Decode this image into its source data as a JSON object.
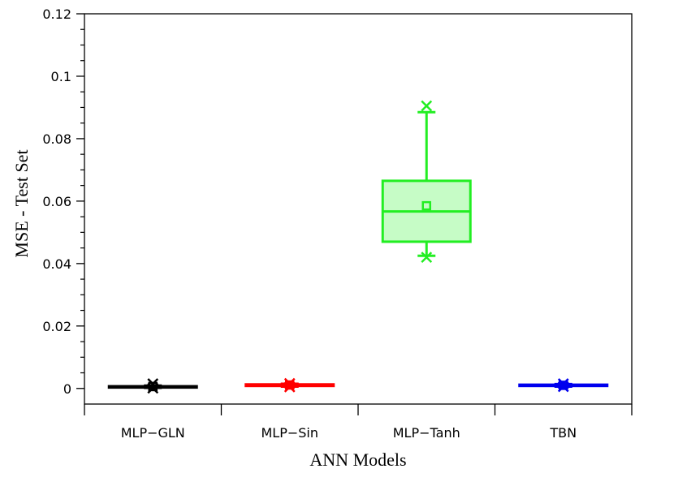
{
  "chart_data": {
    "type": "box",
    "xlabel": "ANN Models",
    "ylabel": "MSE - Test Set",
    "ylim": [
      -0.005,
      0.12
    ],
    "yticks": [
      {
        "value": 0,
        "label": "0"
      },
      {
        "value": 0.02,
        "label": "0.02"
      },
      {
        "value": 0.04,
        "label": "0.04"
      },
      {
        "value": 0.06,
        "label": "0.06"
      },
      {
        "value": 0.08,
        "label": "0.08"
      },
      {
        "value": 0.1,
        "label": "0.1"
      },
      {
        "value": 0.12,
        "label": "0.12"
      }
    ],
    "y_minor_step": 0.005,
    "grid": false,
    "categories": [
      "MLP−GLN",
      "MLP−Sin",
      "MLP−Tanh",
      "TBN"
    ],
    "boxes": [
      {
        "name": "MLP−GLN",
        "color": "#000000",
        "fill": "#ffffff",
        "q1": 0.0003,
        "median": 0.0005,
        "q3": 0.0007,
        "mean": 0.0006,
        "whisker_low": 0.0002,
        "whisker_high": 0.0009,
        "outliers": [
          0.0001,
          0.0015
        ]
      },
      {
        "name": "MLP−Sin",
        "color": "#ff0000",
        "fill": "#ffffff",
        "q1": 0.0008,
        "median": 0.001,
        "q3": 0.0013,
        "mean": 0.0011,
        "whisker_low": 0.0006,
        "whisker_high": 0.0015,
        "outliers": [
          0.0005,
          0.0016
        ]
      },
      {
        "name": "MLP−Tanh",
        "color": "#22ee22",
        "fill": "#c6fcc6",
        "q1": 0.047,
        "median": 0.0567,
        "q3": 0.0665,
        "mean": 0.0585,
        "whisker_low": 0.0425,
        "whisker_high": 0.0885,
        "outliers": [
          0.042,
          0.0905
        ]
      },
      {
        "name": "TBN",
        "color": "#0000ee",
        "fill": "#ffffff",
        "q1": 0.0008,
        "median": 0.001,
        "q3": 0.0012,
        "mean": 0.001,
        "whisker_low": 0.0006,
        "whisker_high": 0.0014,
        "outliers": [
          0.0006,
          0.0015
        ]
      }
    ]
  }
}
